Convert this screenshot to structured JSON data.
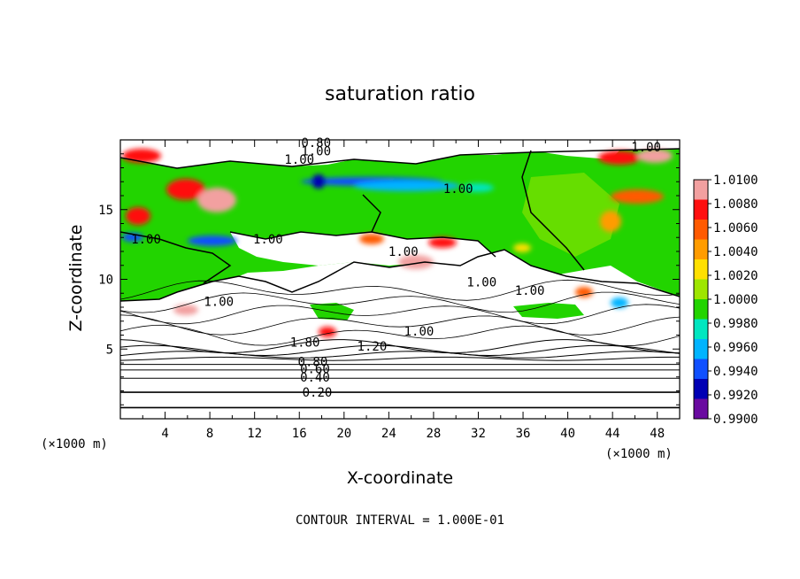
{
  "chart_data": {
    "type": "heatmap",
    "title": "saturation ratio",
    "xlabel": "X-coordinate",
    "ylabel": "Z-coordinate",
    "x_unit": "(×1000 m)",
    "y_unit": "(×1000 m)",
    "xlim": [
      0,
      50
    ],
    "ylim": [
      0,
      20
    ],
    "x_ticks": [
      "4",
      "8",
      "12",
      "16",
      "20",
      "24",
      "28",
      "32",
      "36",
      "40",
      "44",
      "48"
    ],
    "x_tick_values": [
      4,
      8,
      12,
      16,
      20,
      24,
      28,
      32,
      36,
      40,
      44,
      48
    ],
    "y_ticks": [
      "5",
      "10",
      "15"
    ],
    "y_tick_values": [
      5,
      10,
      15
    ],
    "colorbar": {
      "labels": [
        "1.0100",
        "1.0080",
        "1.0060",
        "1.0040",
        "1.0020",
        "1.0000",
        "0.9980",
        "0.9960",
        "0.9940",
        "0.9920",
        "0.9900"
      ],
      "values": [
        1.01,
        1.008,
        1.006,
        1.004,
        1.002,
        1.0,
        0.998,
        0.996,
        0.994,
        0.992,
        0.99
      ],
      "colors": [
        "#f2a0a0",
        "#ff1010",
        "#ff5a00",
        "#ff9c00",
        "#ffe000",
        "#9ee600",
        "#22d400",
        "#00e6c0",
        "#00b4ff",
        "#1050ff",
        "#0000b4",
        "#6a0aa0"
      ]
    },
    "contour_labels": [
      {
        "text": "0.20",
        "x": 17.6,
        "z": 1.9
      },
      {
        "text": "0.40",
        "x": 17.4,
        "z": 3.0
      },
      {
        "text": "0.60",
        "x": 17.4,
        "z": 3.6
      },
      {
        "text": "0.80",
        "x": 17.2,
        "z": 4.1
      },
      {
        "text": "1.20",
        "x": 22.5,
        "z": 5.2
      },
      {
        "text": "1.80",
        "x": 16.5,
        "z": 5.5
      },
      {
        "text": "1.00",
        "x": 26.7,
        "z": 6.3
      },
      {
        "text": "1.00",
        "x": 8.8,
        "z": 8.4
      },
      {
        "text": "1.00",
        "x": 32.3,
        "z": 9.8
      },
      {
        "text": "1.00",
        "x": 36.6,
        "z": 9.2
      },
      {
        "text": "1.00",
        "x": 25.3,
        "z": 12.0
      },
      {
        "text": "1.00",
        "x": 13.2,
        "z": 12.9
      },
      {
        "text": "1.00",
        "x": 2.3,
        "z": 12.9
      },
      {
        "text": "1.00",
        "x": 30.2,
        "z": 16.5
      },
      {
        "text": "1.00",
        "x": 16.0,
        "z": 18.6
      },
      {
        "text": "0.80",
        "x": 17.5,
        "z": 19.8
      },
      {
        "text": "1.00",
        "x": 17.5,
        "z": 19.2
      },
      {
        "text": "1.00",
        "x": 47.0,
        "z": 19.5
      }
    ],
    "grid": false
  },
  "footer": "CONTOUR INTERVAL = 1.000E-01",
  "colors": {
    "background": "#ffffff",
    "axis": "#000000"
  }
}
